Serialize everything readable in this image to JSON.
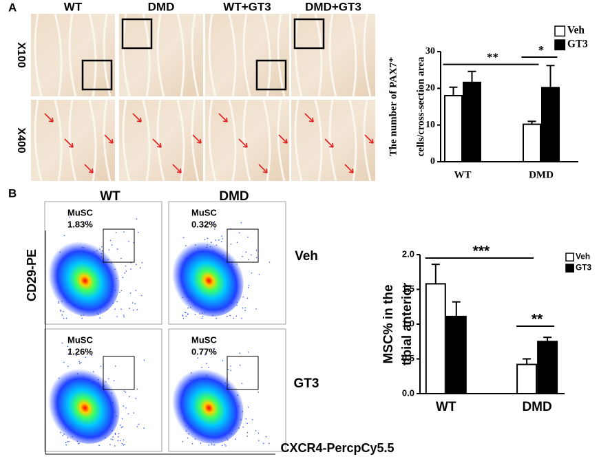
{
  "panel_labels": [
    "A",
    "B"
  ],
  "micrographs": {
    "columns": [
      "WT",
      "DMD",
      "WT+GT3",
      "DMD+GT3"
    ],
    "rows": [
      "X100",
      "X400"
    ]
  },
  "flow": {
    "columns": [
      "WT",
      "DMD"
    ],
    "rows": [
      "Veh",
      "GT3"
    ],
    "gates": [
      {
        "label": "MuSC",
        "value": "1.83%"
      },
      {
        "label": "MuSC",
        "value": "0.32%"
      },
      {
        "label": "MuSC",
        "value": "1.26%"
      },
      {
        "label": "MuSC",
        "value": "0.77%"
      }
    ],
    "ylabel": "CD29-PE",
    "xlabel": "CXCR4-PercpCy5.5"
  },
  "chart_data": [
    {
      "type": "bar",
      "ylabel": [
        "The number of PAX7⁺",
        "cells/cross-section area"
      ],
      "categories": [
        "WT",
        "DMD"
      ],
      "series": [
        {
          "name": "Veh",
          "color": "#ffffff",
          "values": [
            18,
            10.2
          ],
          "errors": [
            2.3,
            0.8
          ]
        },
        {
          "name": "GT3",
          "color": "#000000",
          "values": [
            21.6,
            20.2
          ],
          "errors": [
            3,
            6
          ]
        }
      ],
      "ylim": [
        0,
        30
      ],
      "yticks": [
        0,
        10,
        20,
        30
      ],
      "legend": "upper right",
      "annotations": [
        "**",
        "*"
      ]
    },
    {
      "type": "bar",
      "ylabel": [
        "MSC% in the",
        "tibial anterior"
      ],
      "categories": [
        "WT",
        "DMD"
      ],
      "series": [
        {
          "name": "Veh",
          "color": "#ffffff",
          "values": [
            1.58,
            0.42
          ],
          "errors": [
            0.28,
            0.08
          ]
        },
        {
          "name": "GT3",
          "color": "#000000",
          "values": [
            1.11,
            0.75
          ],
          "errors": [
            0.21,
            0.06
          ]
        }
      ],
      "ylim": [
        0,
        2
      ],
      "yticks": [
        {
          "value": 0,
          "label": "0.0"
        },
        0.5,
        {
          "value": 1,
          "label": "1.0"
        },
        1.5,
        {
          "value": 2,
          "label": "2.0"
        }
      ],
      "legend": "upper right",
      "annotations": [
        "***",
        "**"
      ]
    }
  ]
}
